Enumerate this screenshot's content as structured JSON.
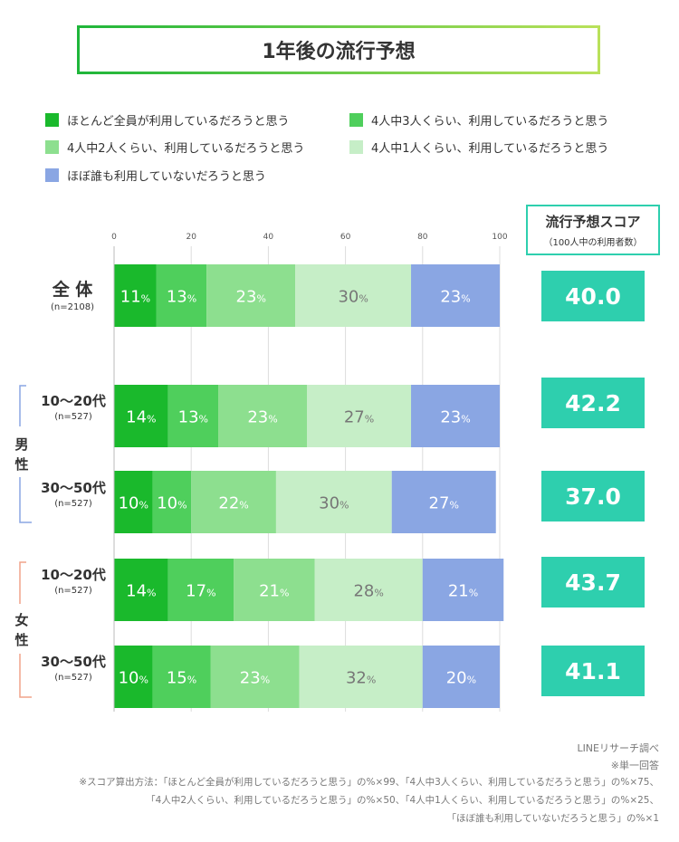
{
  "title": "1年後の流行予想",
  "legend": [
    {
      "label": "ほとんど全員が利用しているだろうと思う",
      "color": "#1ab92c"
    },
    {
      "label": "4人中3人くらい、利用しているだろうと思う",
      "color": "#4fcf5c"
    },
    {
      "label": "4人中2人くらい、利用しているだろうと思う",
      "color": "#8ddf8f"
    },
    {
      "label": "4人中1人くらい、利用しているだろうと思う",
      "color": "#c6eec7"
    },
    {
      "label": "ほぼ誰も利用していないだろうと思う",
      "color": "#8aa6e3"
    }
  ],
  "score_header": {
    "title": "流行予想スコア",
    "subtitle": "（100人中の利用者数）"
  },
  "groups": {
    "male": "男性",
    "female": "女性"
  },
  "colors": {
    "male_bracket": "#8aa6e3",
    "female_bracket": "#f0a38a",
    "score": "#2ecfae"
  },
  "rows": [
    {
      "label": "全 体",
      "n": "(n=2108)",
      "score": "40.0"
    },
    {
      "label": "10〜20代",
      "n": "(n=527)",
      "score": "42.2"
    },
    {
      "label": "30〜50代",
      "n": "(n=527)",
      "score": "37.0"
    },
    {
      "label": "10〜20代",
      "n": "(n=527)",
      "score": "43.7"
    },
    {
      "label": "30〜50代",
      "n": "(n=527)",
      "score": "41.1"
    }
  ],
  "chart_data": {
    "type": "bar",
    "stacked": true,
    "orientation": "horizontal",
    "xlim": [
      0,
      100
    ],
    "xticks": [
      "0",
      "20",
      "40",
      "60",
      "80",
      "100"
    ],
    "categories": [
      "全体",
      "男性 10〜20代",
      "男性 30〜50代",
      "女性 10〜20代",
      "女性 30〜50代"
    ],
    "series": [
      {
        "name": "ほとんど全員が利用しているだろうと思う",
        "values": [
          11,
          14,
          10,
          14,
          10
        ]
      },
      {
        "name": "4人中3人くらい、利用しているだろうと思う",
        "values": [
          13,
          13,
          10,
          17,
          15
        ]
      },
      {
        "name": "4人中2人くらい、利用しているだろうと思う",
        "values": [
          23,
          23,
          22,
          21,
          23
        ]
      },
      {
        "name": "4人中1人くらい、利用しているだろうと思う",
        "values": [
          30,
          27,
          30,
          28,
          32
        ]
      },
      {
        "name": "ほぼ誰も利用していないだろうと思う",
        "values": [
          23,
          23,
          27,
          21,
          20
        ]
      }
    ],
    "unit": "%"
  },
  "footer": {
    "source": "LINEリサーチ調べ",
    "note": "※単一回答",
    "formula_line1": "※スコア算出方法：「ほとんど全員が利用しているだろうと思う」の%×99、「4人中3人くらい、利用しているだろうと思う」の%×75、",
    "formula_line2": "「4人中2人くらい、利用しているだろうと思う」の%×50、「4人中1人くらい、利用しているだろうと思う」の%×25、",
    "formula_line3": "「ほぼ誰も利用していないだろうと思う」の%×1"
  }
}
